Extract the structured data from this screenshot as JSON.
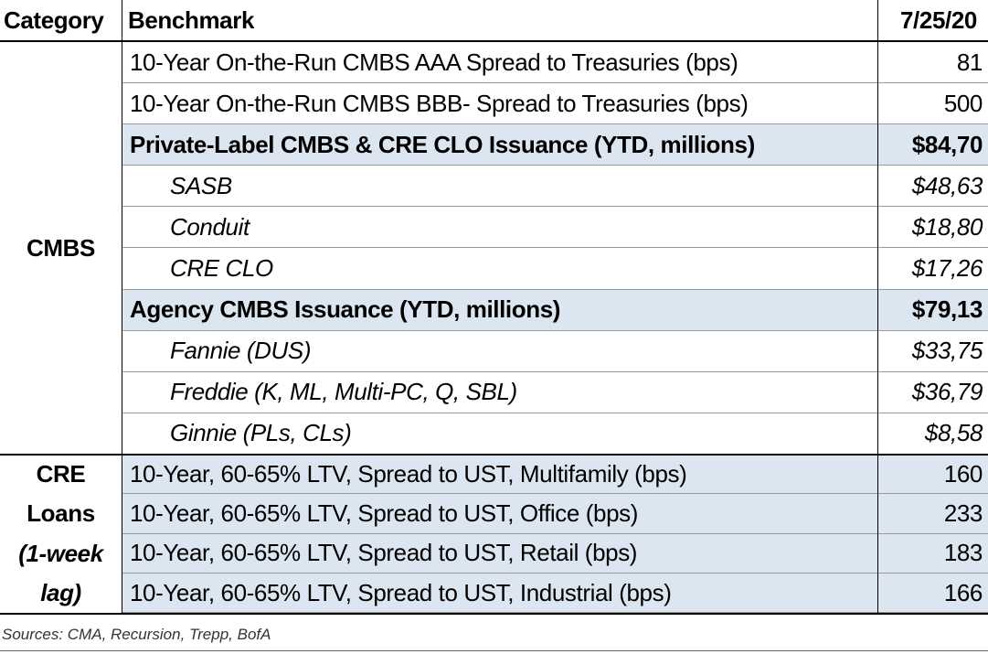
{
  "header": {
    "category": "Category",
    "benchmark": "Benchmark",
    "date": "7/25/20"
  },
  "sections": [
    {
      "category": [
        "CMBS"
      ],
      "rows": [
        {
          "benchmark": "10-Year On-the-Run CMBS AAA Spread to Treasuries (bps)",
          "value": "81"
        },
        {
          "benchmark": "10-Year On-the-Run CMBS BBB- Spread to Treasuries (bps)",
          "value": "500"
        },
        {
          "benchmark": "Private-Label CMBS & CRE CLO Issuance (YTD, millions)",
          "value": "$84,70"
        },
        {
          "benchmark": "SASB",
          "value": "$48,63"
        },
        {
          "benchmark": "Conduit",
          "value": "$18,80"
        },
        {
          "benchmark": "CRE CLO",
          "value": "$17,26"
        },
        {
          "benchmark": "Agency CMBS Issuance (YTD, millions)",
          "value": "$79,13"
        },
        {
          "benchmark": "Fannie (DUS)",
          "value": "$33,75"
        },
        {
          "benchmark": "Freddie (K, ML, Multi-PC, Q, SBL)",
          "value": "$36,79"
        },
        {
          "benchmark": "Ginnie (PLs, CLs)",
          "value": "$8,58"
        }
      ]
    },
    {
      "category": [
        "CRE",
        "Loans",
        "(1-week",
        "lag)"
      ],
      "rows": [
        {
          "benchmark": "10-Year, 60-65% LTV, Spread to UST, Multifamily (bps)",
          "value": "160"
        },
        {
          "benchmark": "10-Year, 60-65% LTV, Spread to UST, Office (bps)",
          "value": "233"
        },
        {
          "benchmark": "10-Year, 60-65% LTV, Spread to UST, Retail (bps)",
          "value": "183"
        },
        {
          "benchmark": "10-Year, 60-65% LTV, Spread to UST, Industrial (bps)",
          "value": "166"
        }
      ]
    }
  ],
  "sources": "Sources: CMA, Recursion, Trepp, BofA"
}
